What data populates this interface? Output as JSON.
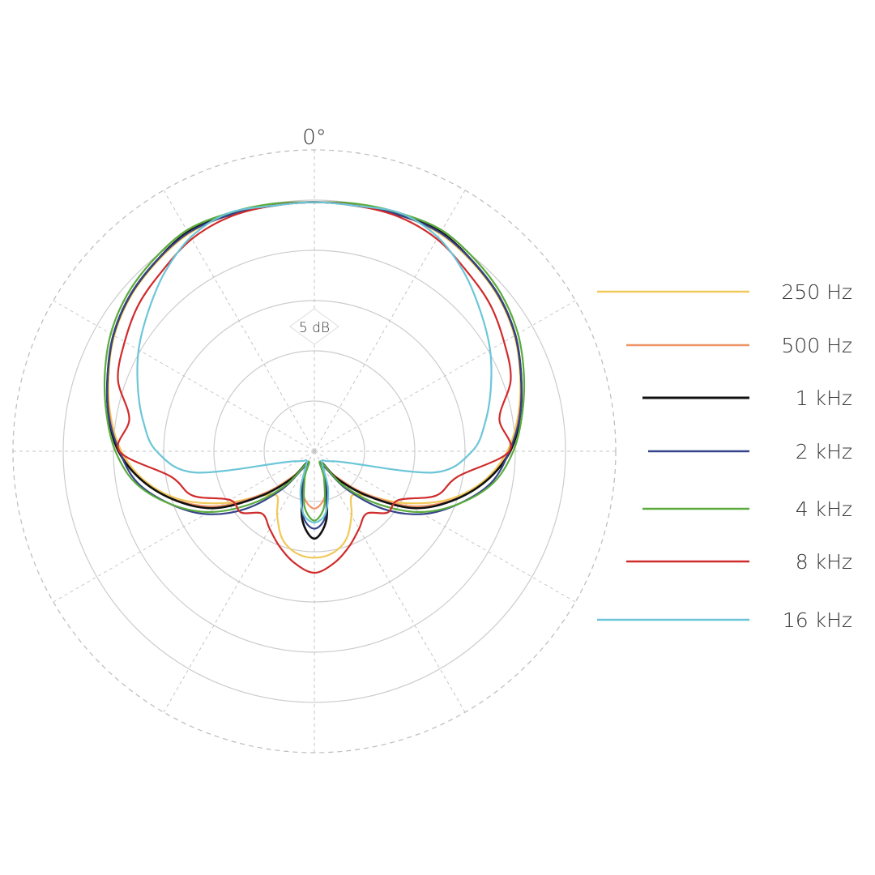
{
  "chart_data": {
    "type": "polar-line",
    "angle_label": "0°",
    "ring_label": "5 dB",
    "angle_unit": "degrees",
    "radial_range_db": [
      -25,
      5
    ],
    "ring_step_db": 5,
    "spoke_step_deg": 30,
    "grid": true,
    "legend_position": "right",
    "symmetric": true,
    "angles": [
      0,
      10,
      20,
      30,
      40,
      50,
      60,
      70,
      80,
      90,
      100,
      110,
      120,
      130,
      140,
      150,
      160,
      170,
      180
    ],
    "series": [
      {
        "name": "250 Hz",
        "color": "#f0c95a",
        "values": [
          -0.2,
          -0.2,
          0,
          0,
          -0.5,
          -1.1,
          -2,
          -3.2,
          -4.4,
          -5.8,
          -7.9,
          -10.9,
          -14.7,
          -18.1,
          -19.2,
          -17.6,
          -15.7,
          -14.7,
          -14.4
        ]
      },
      {
        "name": "500 Hz",
        "color": "#ee9468",
        "values": [
          -0.2,
          -0.2,
          0,
          0.1,
          -0.4,
          -1,
          -1.9,
          -3.1,
          -4.3,
          -5.6,
          -7.7,
          -10.6,
          -14.1,
          -18.5,
          -21.8,
          -23.4,
          -21.4,
          -20,
          -19.3
        ]
      },
      {
        "name": "1 kHz",
        "color": "#111111",
        "values": [
          -0.2,
          -0.2,
          0,
          0.2,
          -0.4,
          -1,
          -1.9,
          -3.1,
          -4.2,
          -5.5,
          -7.7,
          -10.5,
          -13.7,
          -18.1,
          -21.4,
          -23.8,
          -21.8,
          -18.1,
          -16.3
        ]
      },
      {
        "name": "2 kHz",
        "color": "#35448a",
        "values": [
          -0.2,
          -0.2,
          0,
          0.1,
          -0.4,
          -1,
          -1.9,
          -3.1,
          -4.2,
          -5.6,
          -7.1,
          -9.7,
          -12.5,
          -16.1,
          -20.2,
          -23.4,
          -21.8,
          -18.5,
          -17.3
        ]
      },
      {
        "name": "4 kHz",
        "color": "#5aab3c",
        "values": [
          -0.2,
          0,
          0.2,
          0.4,
          -0.1,
          -0.7,
          -1.6,
          -2.8,
          -4,
          -5.2,
          -6.9,
          -9.7,
          -12.9,
          -16.9,
          -20.6,
          -23.8,
          -22.2,
          -19.4,
          -18.1
        ]
      },
      {
        "name": "8 kHz",
        "color": "#d02b2b",
        "values": [
          -0.2,
          -0.2,
          -0.2,
          -0.6,
          -1.5,
          -2.2,
          -3.2,
          -4.2,
          -6.3,
          -5.6,
          -10.5,
          -12.1,
          -15.3,
          -15.5,
          -16.9,
          -16.1,
          -14.9,
          -13.7,
          -12.9
        ]
      },
      {
        "name": "16 kHz",
        "color": "#6cc6d8",
        "values": [
          -0.2,
          -0.2,
          0.2,
          -0.4,
          -1.8,
          -3.4,
          -4.8,
          -6.3,
          -7.7,
          -9.3,
          -12.9,
          -21.8,
          -23,
          -23.5,
          -23.8,
          -23.4,
          -21,
          -18.7,
          -17.9
        ]
      }
    ]
  }
}
